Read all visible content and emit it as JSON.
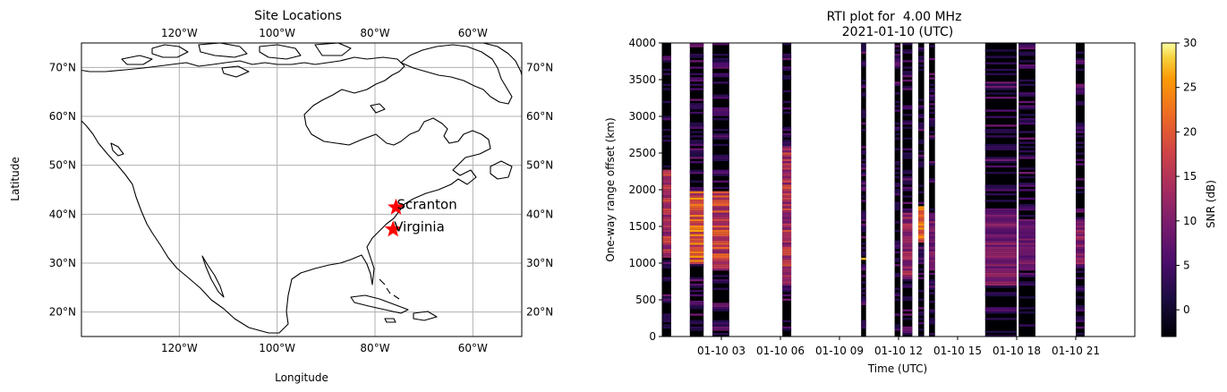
{
  "chart_data": [
    {
      "type": "map",
      "title": "Site Locations",
      "xlabel": "Longitude",
      "ylabel": "Latitude",
      "xlim": [
        -140,
        -50
      ],
      "ylim": [
        15,
        75
      ],
      "grid": true,
      "x_ticks": [
        {
          "value": -120,
          "label": "120°W"
        },
        {
          "value": -100,
          "label": "100°W"
        },
        {
          "value": -80,
          "label": "80°W"
        },
        {
          "value": -60,
          "label": "60°W"
        }
      ],
      "y_ticks": [
        {
          "value": 20,
          "label": "20°N"
        },
        {
          "value": 30,
          "label": "30°N"
        },
        {
          "value": 40,
          "label": "40°N"
        },
        {
          "value": 50,
          "label": "50°N"
        },
        {
          "value": 60,
          "label": "60°N"
        },
        {
          "value": 70,
          "label": "70°N"
        }
      ],
      "marker_color": "#ff0000",
      "sites": [
        {
          "name": "Scranton",
          "lon": -75.7,
          "lat": 41.4
        },
        {
          "name": "Virginia",
          "lon": -76.3,
          "lat": 36.9
        }
      ]
    },
    {
      "type": "heatmap",
      "title": "RTI plot for  4.00 MHz",
      "subtitle": "2021-01-10 (UTC)",
      "xlabel": "Time (UTC)",
      "ylabel": "One-way range offset (km)",
      "xlim": [
        0,
        24
      ],
      "ylim": [
        0,
        4000
      ],
      "x_ticks": [
        {
          "value": 3,
          "label": "01-10 03"
        },
        {
          "value": 6,
          "label": "01-10 06"
        },
        {
          "value": 9,
          "label": "01-10 09"
        },
        {
          "value": 12,
          "label": "01-10 12"
        },
        {
          "value": 15,
          "label": "01-10 15"
        },
        {
          "value": 18,
          "label": "01-10 18"
        },
        {
          "value": 21,
          "label": "01-10 21"
        }
      ],
      "y_ticks": [
        0,
        500,
        1000,
        1500,
        2000,
        2500,
        3000,
        3500,
        4000
      ],
      "colorbar": {
        "label": "SNR (dB)",
        "colormap": "inferno",
        "range": [
          -3,
          30
        ],
        "ticks": [
          0,
          5,
          10,
          15,
          20,
          25,
          30
        ]
      },
      "data_blocks_hours": [
        [
          0.0,
          0.45
        ],
        [
          1.4,
          2.1
        ],
        [
          2.55,
          3.4
        ],
        [
          6.1,
          6.55
        ],
        [
          10.1,
          10.35
        ],
        [
          11.8,
          12.1
        ],
        [
          12.2,
          12.7
        ],
        [
          13.0,
          13.3
        ],
        [
          13.55,
          13.85
        ],
        [
          16.4,
          18.0
        ],
        [
          18.1,
          18.95
        ],
        [
          21.0,
          21.45
        ]
      ],
      "bright_bands": [
        {
          "start": 0.0,
          "end": 0.45,
          "range_km": [
            1100,
            2300
          ],
          "snr": 18
        },
        {
          "start": 1.4,
          "end": 2.1,
          "range_km": [
            1000,
            2000
          ],
          "snr": 24
        },
        {
          "start": 2.55,
          "end": 3.4,
          "range_km": [
            900,
            2000
          ],
          "snr": 20
        },
        {
          "start": 6.1,
          "end": 6.55,
          "range_km": [
            700,
            2600
          ],
          "snr": 18
        },
        {
          "start": 10.1,
          "end": 10.35,
          "range_km": [
            1050,
            1100
          ],
          "snr": 28
        },
        {
          "start": 12.2,
          "end": 12.7,
          "range_km": [
            800,
            1700
          ],
          "snr": 15
        },
        {
          "start": 13.0,
          "end": 13.3,
          "range_km": [
            1300,
            1800
          ],
          "snr": 25
        },
        {
          "start": 13.55,
          "end": 13.85,
          "range_km": [
            900,
            1700
          ],
          "snr": 12
        },
        {
          "start": 16.4,
          "end": 18.0,
          "range_km": [
            700,
            1700
          ],
          "snr": 12
        },
        {
          "start": 18.1,
          "end": 18.95,
          "range_km": [
            900,
            1600
          ],
          "snr": 10
        },
        {
          "start": 21.0,
          "end": 21.45,
          "range_km": [
            1000,
            1600
          ],
          "snr": 14
        }
      ]
    }
  ]
}
